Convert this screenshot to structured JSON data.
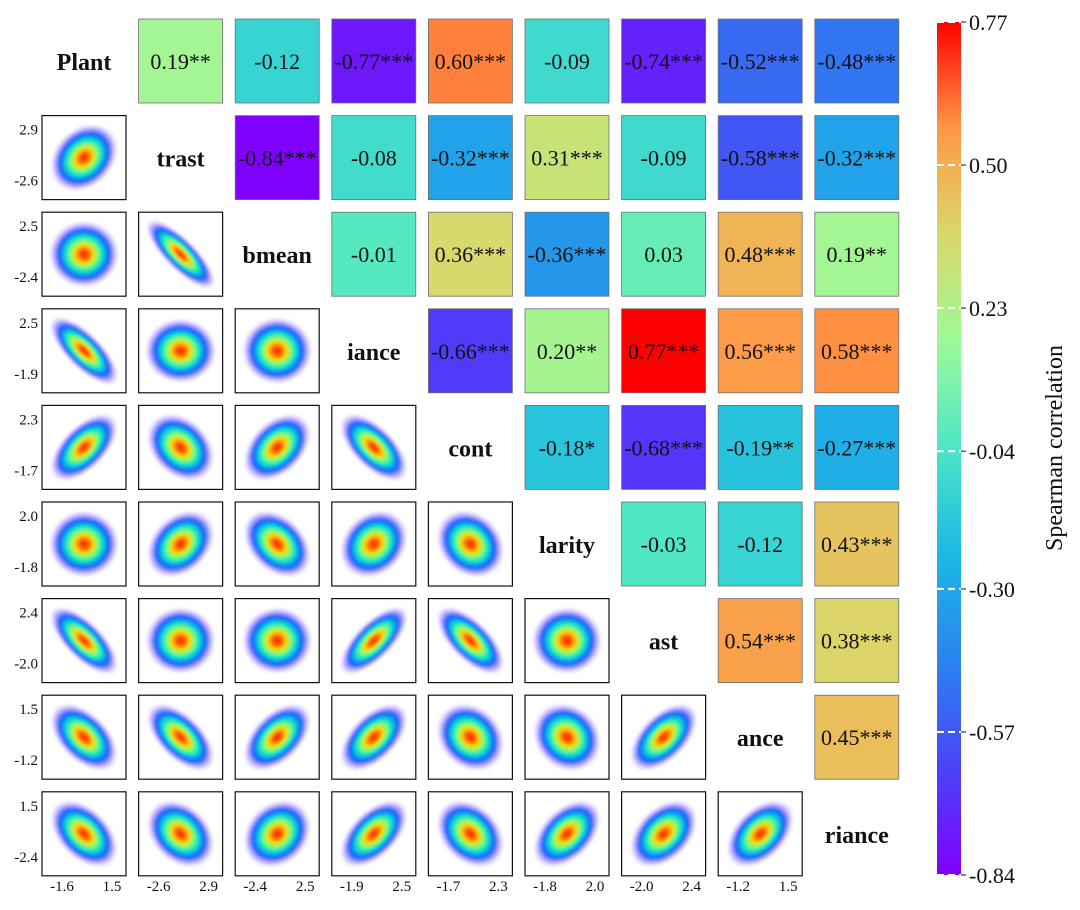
{
  "chart_data": {
    "type": "heatmap",
    "title": "",
    "variables": [
      "Plant",
      "trast",
      "bmean",
      "iance",
      "cont",
      "larity",
      "ast",
      "ance",
      "riance"
    ],
    "upper_triangle": [
      {
        "row": 0,
        "col": 1,
        "value": 0.19,
        "label": "0.19**"
      },
      {
        "row": 0,
        "col": 2,
        "value": -0.12,
        "label": "-0.12"
      },
      {
        "row": 0,
        "col": 3,
        "value": -0.77,
        "label": "-0.77***"
      },
      {
        "row": 0,
        "col": 4,
        "value": 0.6,
        "label": "0.60***"
      },
      {
        "row": 0,
        "col": 5,
        "value": -0.09,
        "label": "-0.09"
      },
      {
        "row": 0,
        "col": 6,
        "value": -0.74,
        "label": "-0.74***"
      },
      {
        "row": 0,
        "col": 7,
        "value": -0.52,
        "label": "-0.52***"
      },
      {
        "row": 0,
        "col": 8,
        "value": -0.48,
        "label": "-0.48***"
      },
      {
        "row": 1,
        "col": 2,
        "value": -0.84,
        "label": "-0.84***"
      },
      {
        "row": 1,
        "col": 3,
        "value": -0.08,
        "label": "-0.08"
      },
      {
        "row": 1,
        "col": 4,
        "value": -0.32,
        "label": "-0.32***"
      },
      {
        "row": 1,
        "col": 5,
        "value": 0.31,
        "label": "0.31***"
      },
      {
        "row": 1,
        "col": 6,
        "value": -0.09,
        "label": "-0.09"
      },
      {
        "row": 1,
        "col": 7,
        "value": -0.58,
        "label": "-0.58***"
      },
      {
        "row": 1,
        "col": 8,
        "value": -0.32,
        "label": "-0.32***"
      },
      {
        "row": 2,
        "col": 3,
        "value": -0.01,
        "label": "-0.01"
      },
      {
        "row": 2,
        "col": 4,
        "value": 0.36,
        "label": "0.36***"
      },
      {
        "row": 2,
        "col": 5,
        "value": -0.36,
        "label": "-0.36***"
      },
      {
        "row": 2,
        "col": 6,
        "value": 0.03,
        "label": "0.03"
      },
      {
        "row": 2,
        "col": 7,
        "value": 0.48,
        "label": "0.48***"
      },
      {
        "row": 2,
        "col": 8,
        "value": 0.19,
        "label": "0.19**"
      },
      {
        "row": 3,
        "col": 4,
        "value": -0.66,
        "label": "-0.66***"
      },
      {
        "row": 3,
        "col": 5,
        "value": 0.2,
        "label": "0.20**"
      },
      {
        "row": 3,
        "col": 6,
        "value": 0.77,
        "label": "0.77***"
      },
      {
        "row": 3,
        "col": 7,
        "value": 0.56,
        "label": "0.56***"
      },
      {
        "row": 3,
        "col": 8,
        "value": 0.58,
        "label": "0.58***"
      },
      {
        "row": 4,
        "col": 5,
        "value": -0.18,
        "label": "-0.18*"
      },
      {
        "row": 4,
        "col": 6,
        "value": -0.68,
        "label": "-0.68***"
      },
      {
        "row": 4,
        "col": 7,
        "value": -0.19,
        "label": "-0.19**"
      },
      {
        "row": 4,
        "col": 8,
        "value": -0.27,
        "label": "-0.27***"
      },
      {
        "row": 5,
        "col": 6,
        "value": -0.03,
        "label": "-0.03"
      },
      {
        "row": 5,
        "col": 7,
        "value": -0.12,
        "label": "-0.12"
      },
      {
        "row": 5,
        "col": 8,
        "value": 0.43,
        "label": "0.43***"
      },
      {
        "row": 6,
        "col": 7,
        "value": 0.54,
        "label": "0.54***"
      },
      {
        "row": 6,
        "col": 8,
        "value": 0.38,
        "label": "0.38***"
      },
      {
        "row": 7,
        "col": 8,
        "value": 0.45,
        "label": "0.45***"
      }
    ],
    "lower_triangle": "2D density plots (blue-to-red kernel density) for each variable pair",
    "y_ticks": [
      [
        "2.9",
        "-2.6"
      ],
      [
        "2.5",
        "-2.4"
      ],
      [
        "2.5",
        "-1.9"
      ],
      [
        "2.3",
        "-1.7"
      ],
      [
        "2.0",
        "-1.8"
      ],
      [
        "2.4",
        "-2.0"
      ],
      [
        "1.5",
        "-1.2"
      ],
      [
        "1.5",
        "-2.4"
      ]
    ],
    "x_ticks": [
      [
        "-1.6",
        "1.5"
      ],
      [
        "-2.6",
        "2.9"
      ],
      [
        "-2.4",
        "2.5"
      ],
      [
        "-1.9",
        "2.5"
      ],
      [
        "-1.7",
        "2.3"
      ],
      [
        "-1.8",
        "2.0"
      ],
      [
        "-2.0",
        "2.4"
      ],
      [
        "-1.2",
        "1.5"
      ]
    ],
    "density_shapes": [
      {
        "row": 1,
        "col": 0,
        "r": 0.25
      },
      {
        "row": 2,
        "col": 0,
        "r": -0.05
      },
      {
        "row": 2,
        "col": 1,
        "r": -0.9
      },
      {
        "row": 3,
        "col": 0,
        "r": -0.8
      },
      {
        "row": 3,
        "col": 1,
        "r": -0.1
      },
      {
        "row": 3,
        "col": 2,
        "r": 0.05
      },
      {
        "row": 4,
        "col": 0,
        "r": 0.6
      },
      {
        "row": 4,
        "col": 1,
        "r": -0.3
      },
      {
        "row": 4,
        "col": 2,
        "r": 0.4
      },
      {
        "row": 4,
        "col": 3,
        "r": -0.65
      },
      {
        "row": 5,
        "col": 0,
        "r": -0.05
      },
      {
        "row": 5,
        "col": 1,
        "r": 0.3
      },
      {
        "row": 5,
        "col": 2,
        "r": -0.35
      },
      {
        "row": 5,
        "col": 3,
        "r": 0.2
      },
      {
        "row": 5,
        "col": 4,
        "r": -0.2
      },
      {
        "row": 6,
        "col": 0,
        "r": -0.75
      },
      {
        "row": 6,
        "col": 1,
        "r": -0.05
      },
      {
        "row": 6,
        "col": 2,
        "r": 0.05
      },
      {
        "row": 6,
        "col": 3,
        "r": 0.75
      },
      {
        "row": 6,
        "col": 4,
        "r": -0.7
      },
      {
        "row": 6,
        "col": 5,
        "r": -0.05
      },
      {
        "row": 7,
        "col": 0,
        "r": -0.5
      },
      {
        "row": 7,
        "col": 1,
        "r": -0.6
      },
      {
        "row": 7,
        "col": 2,
        "r": 0.5
      },
      {
        "row": 7,
        "col": 3,
        "r": 0.55
      },
      {
        "row": 7,
        "col": 4,
        "r": -0.2
      },
      {
        "row": 7,
        "col": 5,
        "r": -0.15
      },
      {
        "row": 7,
        "col": 6,
        "r": 0.55
      },
      {
        "row": 8,
        "col": 0,
        "r": -0.45
      },
      {
        "row": 8,
        "col": 1,
        "r": -0.3
      },
      {
        "row": 8,
        "col": 2,
        "r": 0.2
      },
      {
        "row": 8,
        "col": 3,
        "r": 0.55
      },
      {
        "row": 8,
        "col": 4,
        "r": -0.3
      },
      {
        "row": 8,
        "col": 5,
        "r": 0.45
      },
      {
        "row": 8,
        "col": 6,
        "r": 0.4
      },
      {
        "row": 8,
        "col": 7,
        "r": 0.45
      }
    ],
    "colorbar": {
      "label": "Spearman correlation",
      "min": -0.84,
      "max": 0.77,
      "ticks": [
        {
          "value": 0.77,
          "label": "0.77"
        },
        {
          "value": 0.5,
          "label": "0.50"
        },
        {
          "value": 0.23,
          "label": "0.23"
        },
        {
          "value": -0.04,
          "label": "-0.04"
        },
        {
          "value": -0.3,
          "label": "-0.30"
        },
        {
          "value": -0.57,
          "label": "-0.57"
        },
        {
          "value": -0.84,
          "label": "-0.84"
        }
      ]
    }
  }
}
